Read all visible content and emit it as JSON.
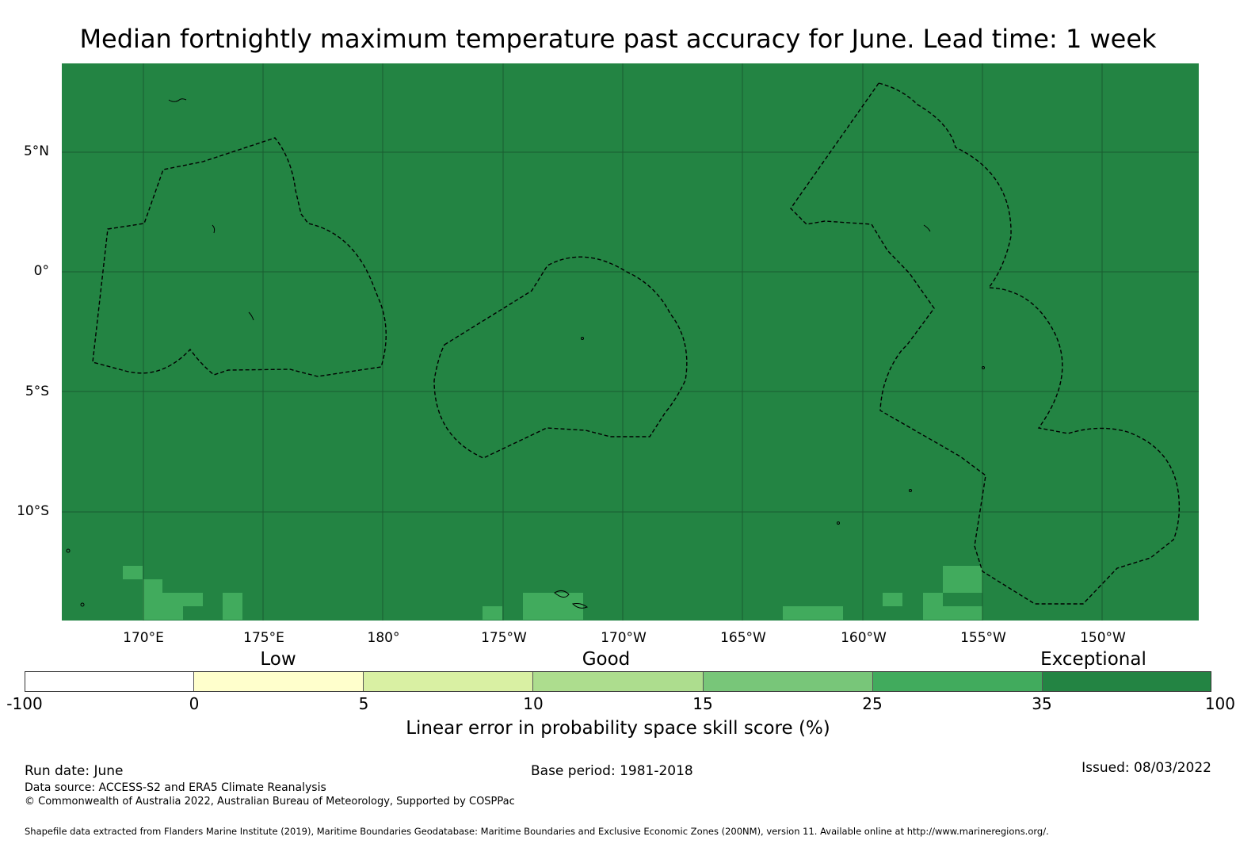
{
  "title": "Median fortnightly maximum temperature past accuracy for June. Lead time: 1 week",
  "map": {
    "background_color": "#238443",
    "patch_color": "#41ab5d",
    "gridline_color": "#1a5c30",
    "outline_color": "#000000",
    "lat_labels": [
      "5°N",
      "0°",
      "5°S",
      "10°S"
    ],
    "lon_labels": [
      "170°E",
      "175°E",
      "180°",
      "175°W",
      "170°W",
      "165°W",
      "160°W",
      "155°W",
      "150°W"
    ],
    "regions": [
      "eez-kiribati-gilbert",
      "eez-tokelau-samoa",
      "eez-kiribati-line-islands"
    ]
  },
  "legend": {
    "category_labels": [
      "Low",
      "Good",
      "Exceptional"
    ],
    "segment_colors": [
      "#ffffff",
      "#ffffcc",
      "#d9f0a3",
      "#addd8e",
      "#78c679",
      "#41ab5d",
      "#238443"
    ],
    "tick_labels": [
      "-100",
      "0",
      "5",
      "10",
      "15",
      "25",
      "35",
      "100"
    ],
    "axis_label": "Linear error in probability space skill score (%)"
  },
  "footer": {
    "run_date": "Run date: June",
    "base_period": "Base period: 1981-2018",
    "issued": "Issued: 08/03/2022",
    "data_source": "Data source: ACCESS-S2 and ERA5 Climate Reanalysis",
    "copyright": "© Commonwealth of Australia 2022, Australian Bureau of Meteorology, Supported by COSPPac",
    "shapefile": "Shapefile data extracted from Flanders Marine Institute (2019), Maritime Boundaries Geodatabase: Maritime Boundaries and Exclusive Economic Zones (200NM), version 11. Available online at http://www.marineregions.org/."
  }
}
